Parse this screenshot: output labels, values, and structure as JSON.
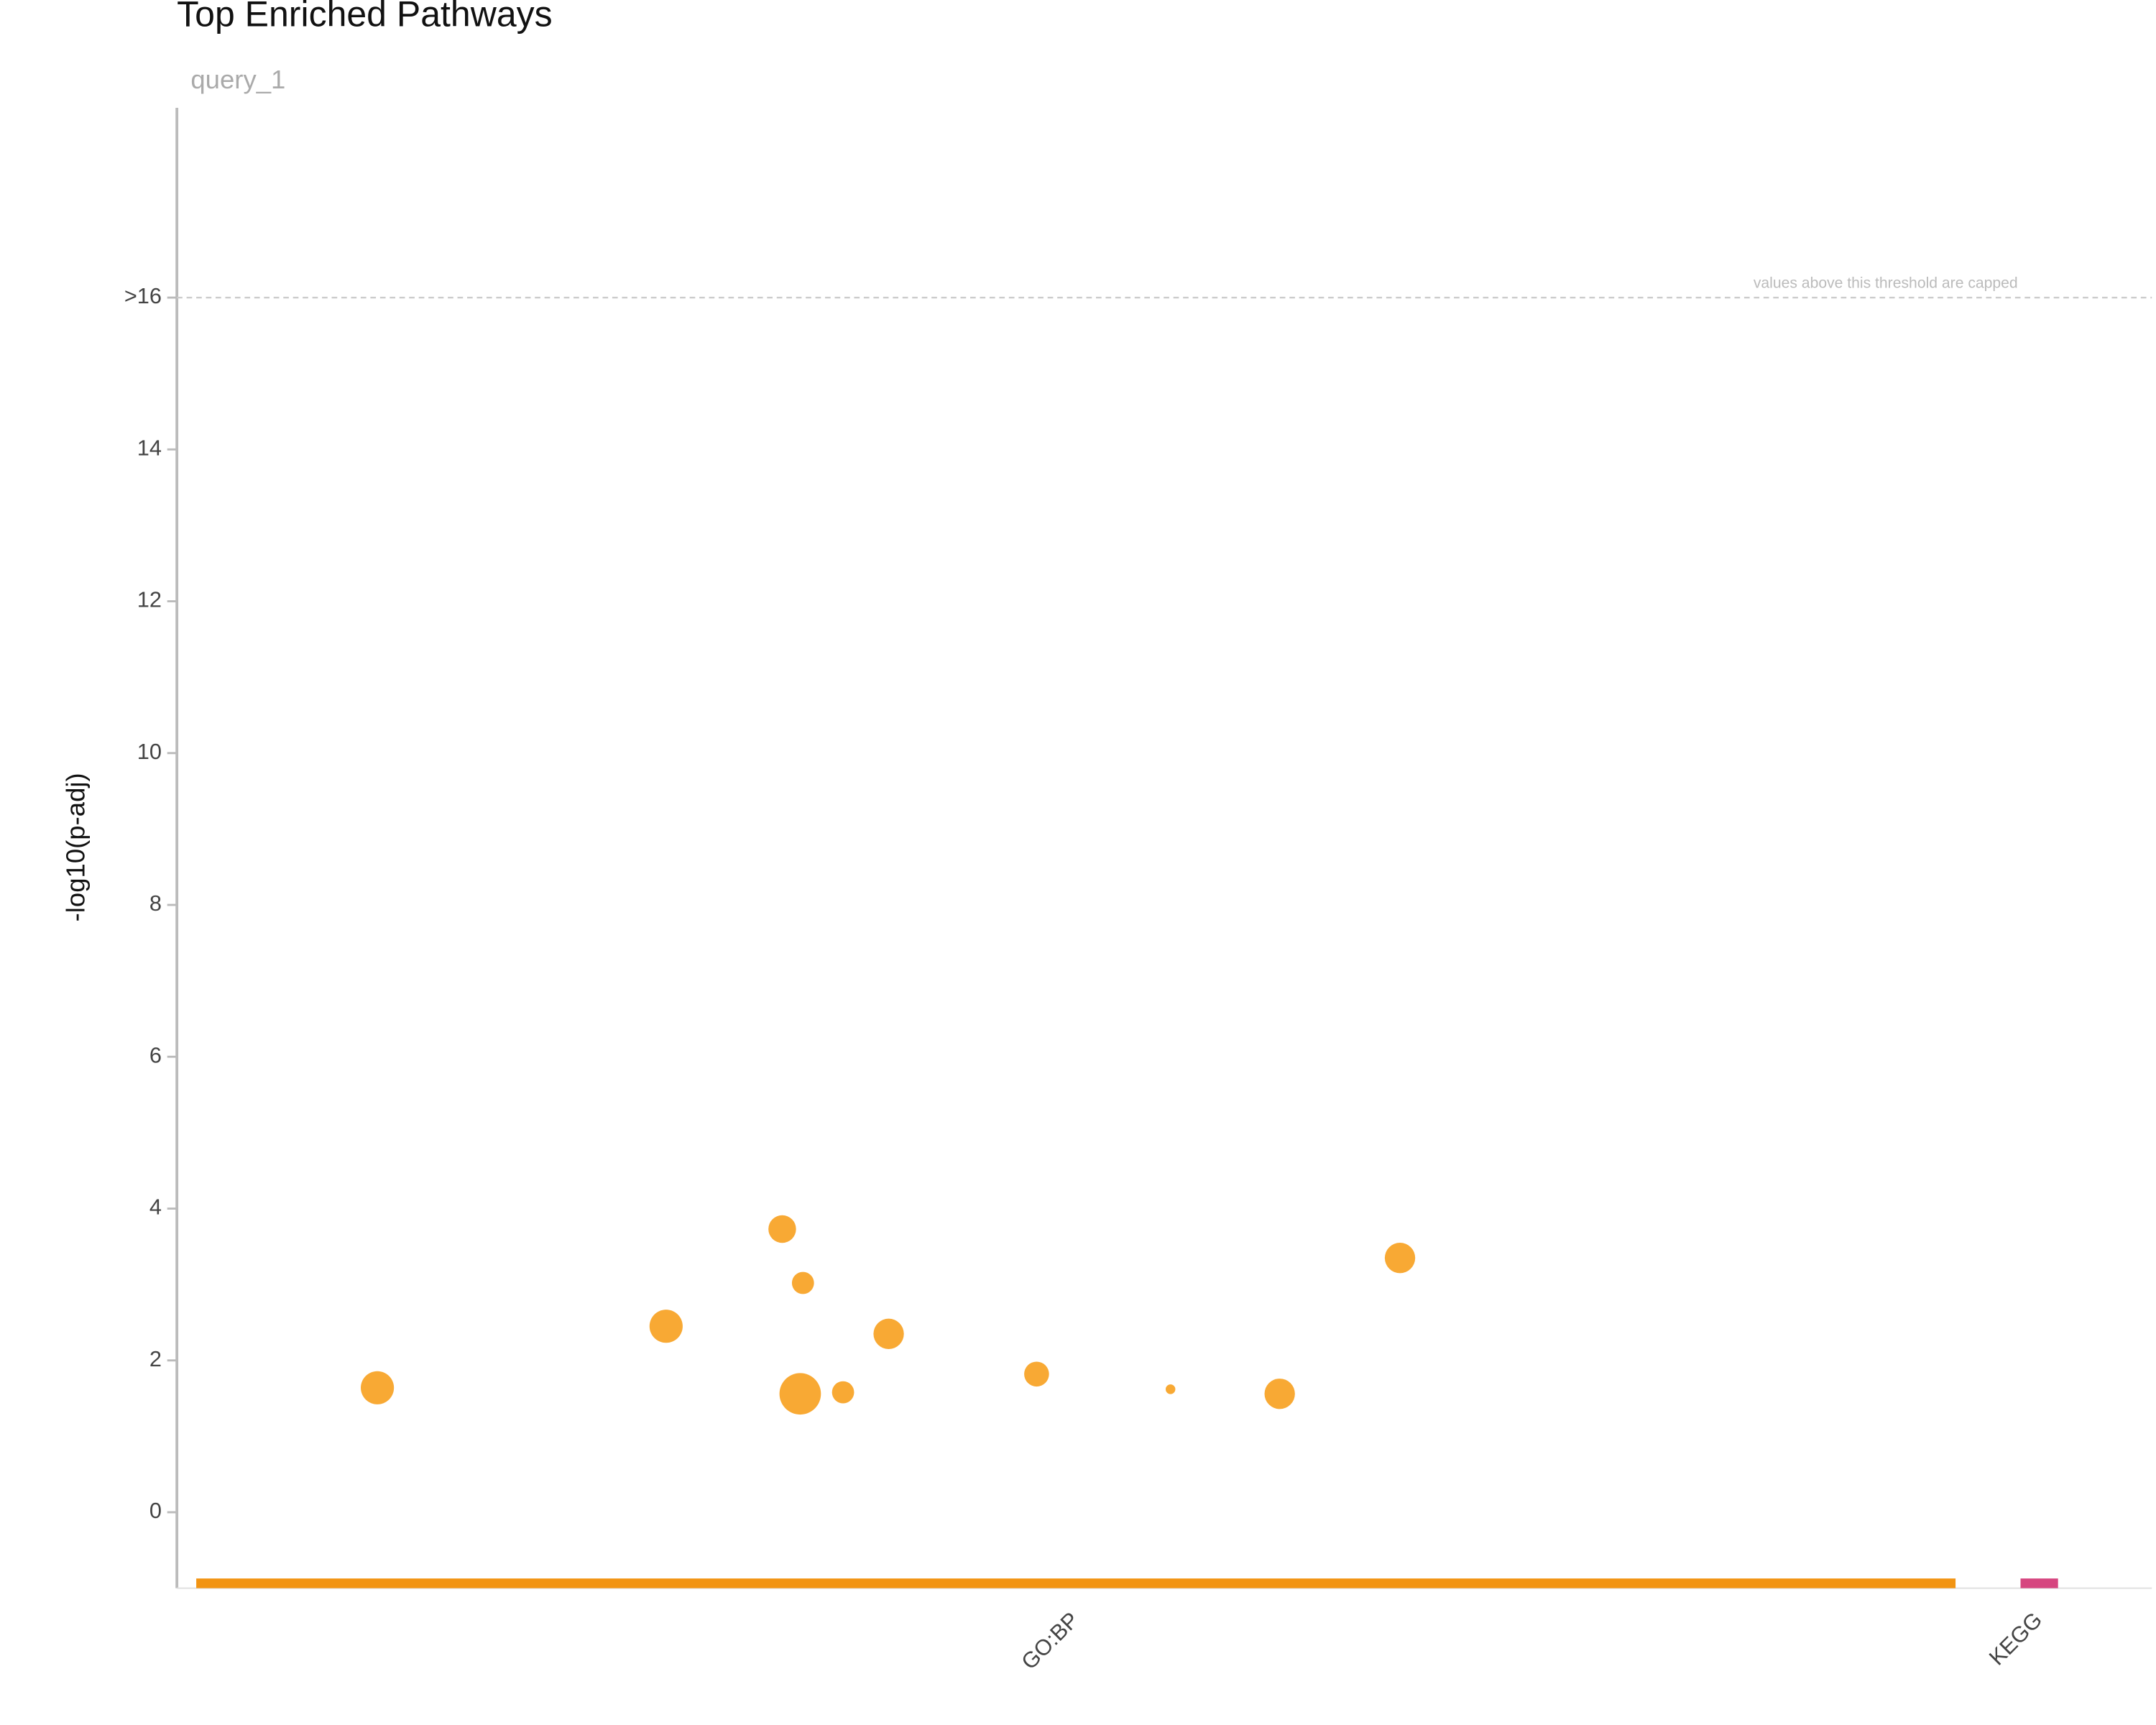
{
  "chart_data": {
    "type": "scatter",
    "title": "Top Enriched Pathways",
    "subtitle": "query_1",
    "y_label": "-log10(p-adj)",
    "annotation": "values above this threshold are capped",
    "threshold": 16,
    "xlim": [
      0,
      1000
    ],
    "ylim": [
      -1,
      18.5
    ],
    "yticks": [
      0,
      2,
      4,
      6,
      8,
      10,
      12,
      14,
      {
        "value": 16,
        "label": ">16"
      }
    ],
    "series": [
      {
        "name": "GO:BP",
        "color": "#f7a01e",
        "x": [
          101.5,
          247.7,
          306.5,
          317,
          315.6,
          337.3,
          360.4,
          435.3,
          503.1,
          558.4,
          619.3
        ],
        "values": [
          1.64,
          2.45,
          3.73,
          3.02,
          1.56,
          1.58,
          2.35,
          1.82,
          1.62,
          1.56,
          3.35
        ],
        "sizes": [
          12,
          12,
          10,
          8,
          15,
          8,
          11,
          9,
          3.5,
          11,
          11
        ]
      }
    ],
    "groups": [
      {
        "name": "GO:BP",
        "color": "#f29412",
        "range": [
          9.8,
          900.6
        ]
      },
      {
        "name": "KEGG",
        "color": "#d6457f",
        "range": [
          933.5,
          952.5
        ]
      }
    ]
  }
}
